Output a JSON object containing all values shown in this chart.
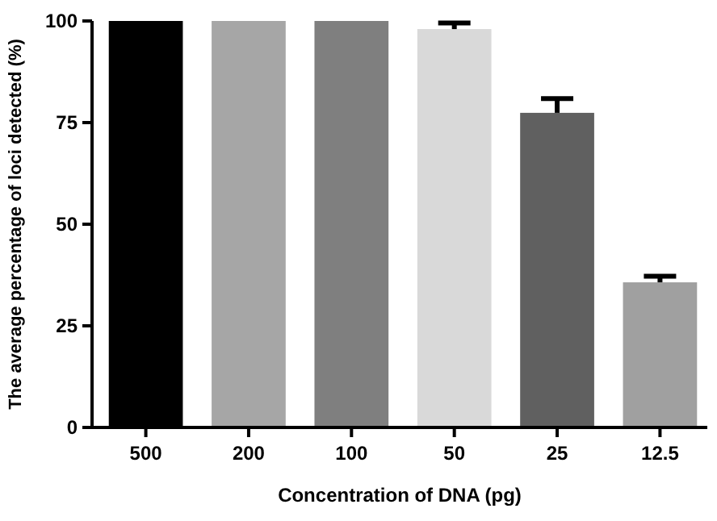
{
  "chart_data": {
    "type": "bar",
    "xlabel": "Concentration of DNA (pg)",
    "ylabel": "The average percentage of loci detected (%)",
    "categories": [
      "500",
      "200",
      "100",
      "50",
      "25",
      "12.5"
    ],
    "values": [
      100,
      100,
      100,
      98,
      77.4,
      35.7
    ],
    "colors": [
      "#000000",
      "#a6a6a6",
      "#7f7f7f",
      "#d9d9d9",
      "#606060",
      "#a0a0a0"
    ],
    "errors": [
      null,
      null,
      null,
      1.5,
      3.5,
      1.5
    ],
    "ylim": [
      0,
      100
    ],
    "yticks": [
      0,
      25,
      50,
      75,
      100
    ],
    "grid": false
  }
}
